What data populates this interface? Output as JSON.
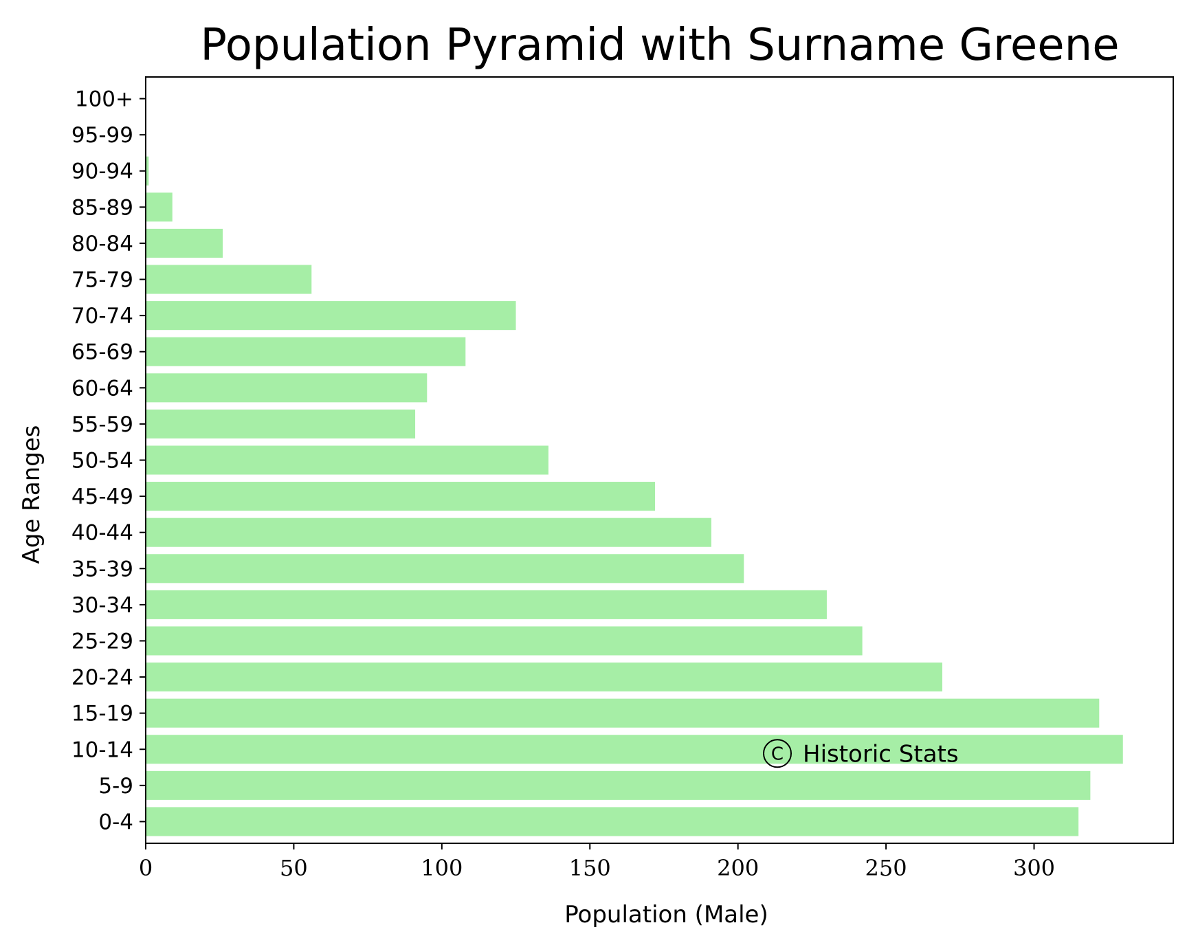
{
  "chart_data": {
    "type": "bar",
    "orientation": "horizontal",
    "title": "Population Pyramid with Surname Greene",
    "xlabel": "Population (Male)",
    "ylabel": "Age Ranges",
    "categories": [
      "0-4",
      "5-9",
      "10-14",
      "15-19",
      "20-24",
      "25-29",
      "30-34",
      "35-39",
      "40-44",
      "45-49",
      "50-54",
      "55-59",
      "60-64",
      "65-69",
      "70-74",
      "75-79",
      "80-84",
      "85-89",
      "90-94",
      "95-99",
      "100+"
    ],
    "values": [
      315,
      319,
      330,
      322,
      269,
      242,
      230,
      202,
      191,
      172,
      136,
      91,
      95,
      108,
      125,
      56,
      26,
      9,
      1,
      0,
      0
    ],
    "xlim": [
      0,
      347
    ],
    "xticks": [
      0,
      50,
      100,
      150,
      200,
      250,
      300
    ],
    "xtick_labels": [
      "0",
      "50",
      "100",
      "150",
      "200",
      "250",
      "300"
    ],
    "grid": false,
    "legend": "none",
    "bar_color": "#a6eea6",
    "annotation": {
      "symbol": "©",
      "text": "Historic Stats"
    }
  }
}
